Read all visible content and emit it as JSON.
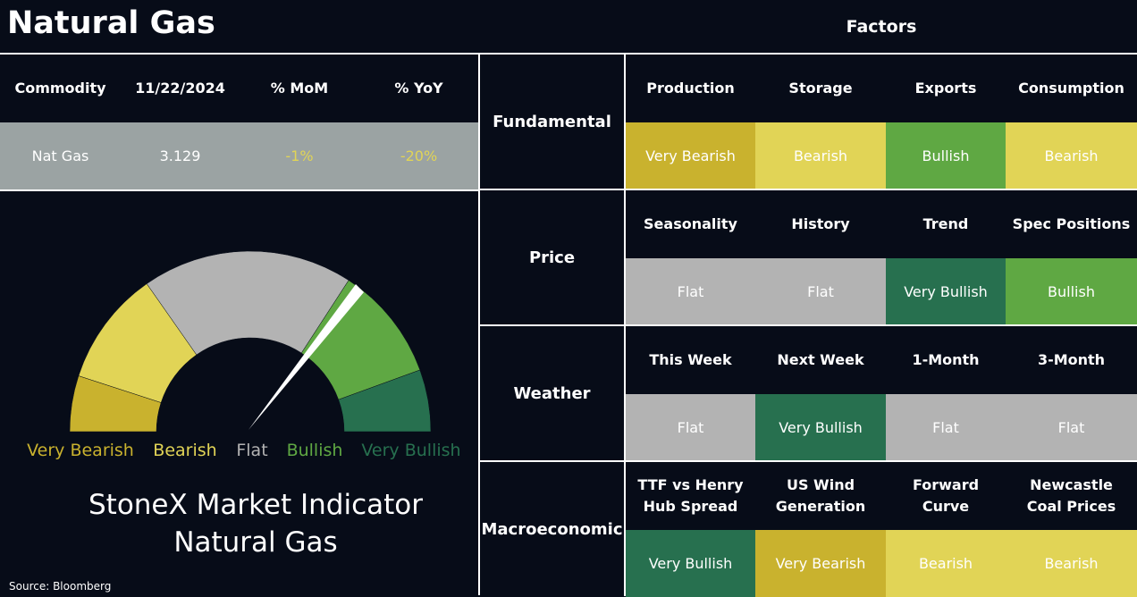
{
  "header": {
    "title": "Natural Gas",
    "factors_title": "Factors"
  },
  "commodity_table": {
    "columns": [
      "Commodity",
      "11/22/2024",
      "% MoM",
      "% YoY"
    ],
    "row": [
      "Nat Gas",
      "3.129",
      "-1%",
      "-20%"
    ]
  },
  "gauge": {
    "labels": [
      "Very Bearish",
      "Bearish",
      "Flat",
      "Bullish",
      "Very Bullish"
    ],
    "colors": [
      "#c9b22e",
      "#e1d456",
      "#b3b3b3",
      "#5fa843",
      "#27704f"
    ],
    "title_lines": [
      "StoneX Market Indicator",
      "Natural Gas"
    ]
  },
  "source": "Source: Bloomberg",
  "factors": [
    {
      "name": "Fundamental",
      "items": [
        {
          "label": "Production",
          "rating": "Very Bearish"
        },
        {
          "label": "Storage",
          "rating": "Bearish"
        },
        {
          "label": "Exports",
          "rating": "Bullish"
        },
        {
          "label": "Consumption",
          "rating": "Bearish"
        }
      ]
    },
    {
      "name": "Price",
      "items": [
        {
          "label": "Seasonality",
          "rating": "Flat"
        },
        {
          "label": "History",
          "rating": "Flat"
        },
        {
          "label": "Trend",
          "rating": "Very Bullish"
        },
        {
          "label": "Spec Positions",
          "rating": "Bullish"
        }
      ]
    },
    {
      "name": "Weather",
      "items": [
        {
          "label": "This Week",
          "rating": "Flat"
        },
        {
          "label": "Next Week",
          "rating": "Very Bullish"
        },
        {
          "label": "1-Month",
          "rating": "Flat"
        },
        {
          "label": "3-Month",
          "rating": "Flat"
        }
      ]
    },
    {
      "name": "Macroeconomic",
      "items": [
        {
          "label": "TTF vs Henry Hub Spread",
          "rating": "Very Bullish"
        },
        {
          "label": "US Wind Generation",
          "rating": "Very Bearish"
        },
        {
          "label": "Forward Curve",
          "rating": "Bearish"
        },
        {
          "label": "Newcastle Coal Prices",
          "rating": "Bearish"
        }
      ]
    }
  ]
}
